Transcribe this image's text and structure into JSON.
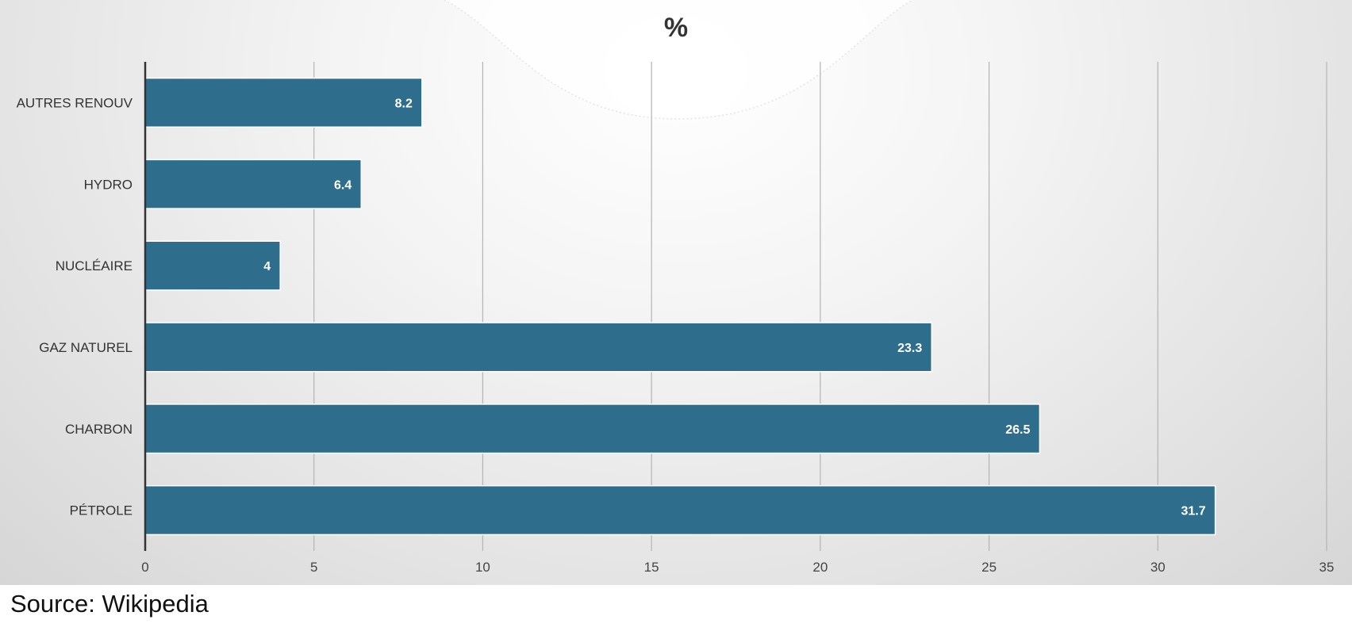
{
  "chart_data": {
    "type": "bar",
    "orientation": "horizontal",
    "title": "%",
    "categories": [
      "AUTRES RENOUV",
      "HYDRO",
      "NUCLÉAIRE",
      "GAZ NATUREL",
      "CHARBON",
      "PÉTROLE"
    ],
    "values": [
      8.2,
      6.4,
      4,
      23.3,
      26.5,
      31.7
    ],
    "value_labels": [
      "8.2",
      "6.4",
      "4",
      "23.3",
      "26.5",
      "31.7"
    ],
    "xticks": [
      "0",
      "5",
      "10",
      "15",
      "20",
      "25",
      "30",
      "35"
    ],
    "xlim": [
      0,
      35
    ],
    "grid": true,
    "legend": "none",
    "bar_color": "#2e6e8c"
  },
  "source": {
    "prefix": "Source:",
    "name": "Wikipedia"
  }
}
